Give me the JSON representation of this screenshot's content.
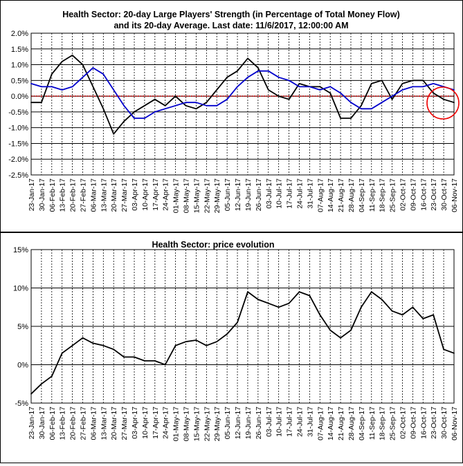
{
  "charts_meta": {
    "x_tick_labels": [
      "23-Jan-17",
      "30-Jan-17",
      "06-Feb-17",
      "13-Feb-17",
      "20-Feb-17",
      "27-Feb-17",
      "06-Mar-17",
      "13-Mar-17",
      "20-Mar-17",
      "27-Mar-17",
      "03-Apr-17",
      "10-Apr-17",
      "17-Apr-17",
      "24-Apr-17",
      "01-May-17",
      "08-May-17",
      "15-May-17",
      "22-May-17",
      "29-May-17",
      "05-Jun-17",
      "12-Jun-17",
      "19-Jun-17",
      "26-Jun-17",
      "03-Jul-17",
      "10-Jul-17",
      "17-Jul-17",
      "24-Jul-17",
      "31-Jul-17",
      "07-Aug-17",
      "14-Aug-17",
      "21-Aug-17",
      "28-Aug-17",
      "04-Sep-17",
      "11-Sep-17",
      "18-Sep-17",
      "25-Sep-17",
      "02-Oct-17",
      "09-Oct-17",
      "16-Oct-17",
      "23-Oct-17",
      "30-Oct-17",
      "06-Nov-17"
    ]
  },
  "colors": {
    "strength_line": "#000000",
    "average_line": "#0000cc",
    "zero_line": "#cc0000",
    "highlight_circle": "#ee0000",
    "gridline": "#000000"
  },
  "chart_data": [
    {
      "type": "line",
      "title_line1": "Health Sector: 20-day Large Players' Strength (in Percentage of Total Money Flow)",
      "title_line2": "and its 20-day Average. Last date: 11/6/2017, 12:00:00 AM",
      "xlabel": "",
      "ylabel": "",
      "y_tick_labels": [
        "2.0%",
        "1.5%",
        "1.0%",
        "0.5%",
        "0.0%",
        "-0.5%",
        "-1.0%",
        "-1.5%",
        "-2.0%",
        "-2.5%"
      ],
      "ylim": [
        -2.5,
        2.0
      ],
      "grid": true,
      "zero_line": true,
      "annotation": "red circle highlighting the latest readings",
      "x": [
        "23-Jan-17",
        "30-Jan-17",
        "06-Feb-17",
        "13-Feb-17",
        "20-Feb-17",
        "27-Feb-17",
        "06-Mar-17",
        "13-Mar-17",
        "20-Mar-17",
        "27-Mar-17",
        "03-Apr-17",
        "10-Apr-17",
        "17-Apr-17",
        "24-Apr-17",
        "01-May-17",
        "08-May-17",
        "15-May-17",
        "22-May-17",
        "29-May-17",
        "05-Jun-17",
        "12-Jun-17",
        "19-Jun-17",
        "26-Jun-17",
        "03-Jul-17",
        "10-Jul-17",
        "17-Jul-17",
        "24-Jul-17",
        "31-Jul-17",
        "07-Aug-17",
        "14-Aug-17",
        "21-Aug-17",
        "28-Aug-17",
        "04-Sep-17",
        "11-Sep-17",
        "18-Sep-17",
        "25-Sep-17",
        "02-Oct-17",
        "09-Oct-17",
        "16-Oct-17",
        "23-Oct-17",
        "30-Oct-17",
        "06-Nov-17"
      ],
      "series": [
        {
          "values": [
            -0.2,
            -0.2,
            0.7,
            1.1,
            1.3,
            1.0,
            0.3,
            -0.4,
            -1.2,
            -0.8,
            -0.5,
            -0.3,
            -0.1,
            -0.3,
            0.0,
            -0.3,
            -0.4,
            -0.2,
            0.2,
            0.6,
            0.8,
            1.2,
            0.9,
            0.2,
            0.0,
            -0.1,
            0.4,
            0.3,
            0.3,
            0.1,
            -0.7,
            -0.7,
            -0.3,
            0.4,
            0.5,
            -0.1,
            0.4,
            0.5,
            0.5,
            0.1,
            -0.1,
            -0.2
          ]
        },
        {
          "values": [
            0.4,
            0.3,
            0.3,
            0.2,
            0.3,
            0.6,
            0.9,
            0.7,
            0.2,
            -0.3,
            -0.7,
            -0.7,
            -0.5,
            -0.4,
            -0.3,
            -0.2,
            -0.2,
            -0.3,
            -0.3,
            -0.1,
            0.3,
            0.6,
            0.8,
            0.8,
            0.6,
            0.5,
            0.3,
            0.3,
            0.2,
            0.3,
            0.1,
            -0.2,
            -0.4,
            -0.4,
            -0.2,
            0.0,
            0.2,
            0.3,
            0.3,
            0.4,
            0.3,
            0.2
          ]
        }
      ]
    },
    {
      "type": "line",
      "title": "Health Sector: price evolution",
      "xlabel": "",
      "ylabel": "",
      "y_tick_labels": [
        "15%",
        "10%",
        "5%",
        "0%",
        "-5%"
      ],
      "ylim": [
        -5,
        15
      ],
      "grid": true,
      "x": [
        "23-Jan-17",
        "30-Jan-17",
        "06-Feb-17",
        "13-Feb-17",
        "20-Feb-17",
        "27-Feb-17",
        "06-Mar-17",
        "13-Mar-17",
        "20-Mar-17",
        "27-Mar-17",
        "03-Apr-17",
        "10-Apr-17",
        "17-Apr-17",
        "24-Apr-17",
        "01-May-17",
        "08-May-17",
        "15-May-17",
        "22-May-17",
        "29-May-17",
        "05-Jun-17",
        "12-Jun-17",
        "19-Jun-17",
        "26-Jun-17",
        "03-Jul-17",
        "10-Jul-17",
        "17-Jul-17",
        "24-Jul-17",
        "31-Jul-17",
        "07-Aug-17",
        "14-Aug-17",
        "21-Aug-17",
        "28-Aug-17",
        "04-Sep-17",
        "11-Sep-17",
        "18-Sep-17",
        "25-Sep-17",
        "02-Oct-17",
        "09-Oct-17",
        "16-Oct-17",
        "23-Oct-17",
        "30-Oct-17",
        "06-Nov-17"
      ],
      "series": [
        {
          "values": [
            -3.8,
            -2.5,
            -1.5,
            1.5,
            2.5,
            3.5,
            2.8,
            2.5,
            2.0,
            1.0,
            1.0,
            0.5,
            0.5,
            0.0,
            2.5,
            3.0,
            3.2,
            2.5,
            3.0,
            4.0,
            5.5,
            9.5,
            8.5,
            8.0,
            7.5,
            8.0,
            9.5,
            9.0,
            6.5,
            4.5,
            3.5,
            4.5,
            7.5,
            9.5,
            8.5,
            7.0,
            6.5,
            7.5,
            6.0,
            6.5,
            2.0,
            1.5
          ]
        }
      ]
    }
  ]
}
